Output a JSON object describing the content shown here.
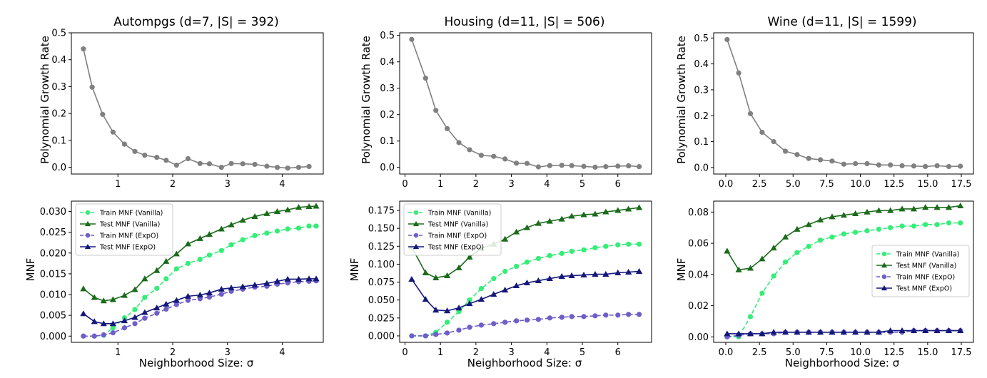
{
  "chart_data": [
    {
      "panel": "autompgs-growth",
      "type": "line",
      "title": "Autompgs (d=7, |S| = 392)",
      "xlabel": "",
      "ylabel": "Polynomial Growth Rate",
      "xlim": [
        0.15,
        4.75
      ],
      "ylim": [
        -0.025,
        0.5
      ],
      "xticks": [
        "1",
        "2",
        "3",
        "4"
      ],
      "xtick_values": [
        1,
        2,
        3,
        4
      ],
      "yticks": [
        "0.0",
        "0.1",
        "0.2",
        "0.3",
        "0.4",
        "0.5"
      ],
      "ytick_values": [
        0,
        0.1,
        0.2,
        0.3,
        0.4,
        0.5
      ],
      "grid": false,
      "legend": null,
      "series": [
        {
          "color": "#808080",
          "marker": "circle",
          "dash": "solid",
          "x": [
            0.37,
            0.53,
            0.72,
            0.91,
            1.12,
            1.31,
            1.49,
            1.71,
            1.88,
            2.07,
            2.28,
            2.5,
            2.67,
            2.89,
            3.07,
            3.28,
            3.5,
            3.72,
            3.91,
            4.1,
            4.3,
            4.49
          ],
          "y": [
            0.44,
            0.298,
            0.197,
            0.131,
            0.086,
            0.059,
            0.045,
            0.037,
            0.026,
            0.008,
            0.032,
            0.014,
            0.013,
            0.0,
            0.014,
            0.013,
            0.011,
            0.004,
            0.0,
            -0.003,
            0.0,
            0.003
          ]
        }
      ]
    },
    {
      "panel": "housing-growth",
      "type": "line",
      "title": "Housing (d=11, |S| = 506)",
      "xlabel": "",
      "ylabel": "Polynomial Growth Rate",
      "xlim": [
        -0.15,
        6.95
      ],
      "ylim": [
        -0.025,
        0.51
      ],
      "xticks": [
        "0",
        "1",
        "2",
        "3",
        "4",
        "5",
        "6"
      ],
      "xtick_values": [
        0,
        1,
        2,
        3,
        4,
        5,
        6
      ],
      "yticks": [
        "0.0",
        "0.1",
        "0.2",
        "0.3",
        "0.4",
        "0.5"
      ],
      "ytick_values": [
        0,
        0.1,
        0.2,
        0.3,
        0.4,
        0.5
      ],
      "grid": false,
      "legend": null,
      "series": [
        {
          "color": "#808080",
          "marker": "circle",
          "dash": "solid",
          "x": [
            0.19,
            0.58,
            0.87,
            1.19,
            1.52,
            1.82,
            2.15,
            2.5,
            2.82,
            3.14,
            3.44,
            3.76,
            4.08,
            4.42,
            4.7,
            5.04,
            5.36,
            5.66,
            6.0,
            6.3,
            6.6
          ],
          "y": [
            0.485,
            0.338,
            0.216,
            0.147,
            0.094,
            0.067,
            0.046,
            0.042,
            0.032,
            0.016,
            0.015,
            0.002,
            0.007,
            0.008,
            0.007,
            0.004,
            0.001,
            0.003,
            0.005,
            0.006,
            0.003
          ]
        }
      ]
    },
    {
      "panel": "wine-growth",
      "type": "line",
      "title": "Wine (d=11, |S| = 1599)",
      "xlabel": "",
      "ylabel": "Polynomial Growth Rate",
      "xlim": [
        -0.9,
        18.4
      ],
      "ylim": [
        -0.025,
        0.52
      ],
      "xticks": [
        "0.0",
        "2.5",
        "5.0",
        "7.5",
        "10.0",
        "12.5",
        "15.0",
        "17.5"
      ],
      "xtick_values": [
        0,
        2.5,
        5,
        7.5,
        10,
        12.5,
        15,
        17.5
      ],
      "yticks": [
        "0.0",
        "0.1",
        "0.2",
        "0.3",
        "0.4",
        "0.5"
      ],
      "ytick_values": [
        0,
        0.1,
        0.2,
        0.3,
        0.4,
        0.5
      ],
      "grid": false,
      "legend": null,
      "series": [
        {
          "color": "#808080",
          "marker": "circle",
          "dash": "solid",
          "x": [
            0.1,
            0.96,
            1.83,
            2.7,
            3.56,
            4.43,
            5.3,
            6.16,
            7.03,
            7.9,
            8.77,
            9.63,
            10.5,
            11.37,
            12.23,
            13.1,
            13.97,
            14.83,
            15.7,
            16.57,
            17.43
          ],
          "y": [
            0.494,
            0.365,
            0.208,
            0.136,
            0.1,
            0.063,
            0.05,
            0.035,
            0.03,
            0.025,
            0.013,
            0.015,
            0.015,
            0.01,
            0.01,
            0.007,
            0.006,
            0.004,
            0.007,
            0.004,
            0.005
          ]
        }
      ]
    },
    {
      "panel": "autompgs-mnf",
      "type": "line",
      "title": "",
      "xlabel": "Neighborhood Size: σ",
      "ylabel": "MNF",
      "xlim": [
        0.15,
        4.75
      ],
      "ylim": [
        -0.0015,
        0.0325
      ],
      "xticks": [
        "1",
        "2",
        "3",
        "4"
      ],
      "xtick_values": [
        1,
        2,
        3,
        4
      ],
      "yticks": [
        "0.000",
        "0.005",
        "0.010",
        "0.015",
        "0.020",
        "0.025",
        "0.030"
      ],
      "ytick_values": [
        0,
        0.005,
        0.01,
        0.015,
        0.02,
        0.025,
        0.03
      ],
      "grid": false,
      "legend": "upper-left",
      "x": [
        0.37,
        0.57,
        0.74,
        0.91,
        1.12,
        1.31,
        1.49,
        1.71,
        1.88,
        2.07,
        2.28,
        2.5,
        2.67,
        2.89,
        3.07,
        3.28,
        3.5,
        3.72,
        3.91,
        4.1,
        4.3,
        4.49,
        4.62
      ],
      "series": [
        {
          "name": "Train MNF (Vanilla)",
          "color": "#33ee77",
          "marker": "circle",
          "dash": "dashed",
          "y": [
            0.0,
            0.0,
            0.0002,
            0.002,
            0.0044,
            0.0064,
            0.0093,
            0.0115,
            0.0138,
            0.0162,
            0.0175,
            0.0185,
            0.0195,
            0.0206,
            0.022,
            0.0232,
            0.0242,
            0.0248,
            0.0253,
            0.0258,
            0.026,
            0.0265,
            0.0265
          ]
        },
        {
          "name": "Test MNF (Vanilla)",
          "color": "#1a6b1a",
          "marker": "triangle",
          "dash": "solid",
          "y": [
            0.0114,
            0.0093,
            0.0085,
            0.0088,
            0.0098,
            0.0112,
            0.0138,
            0.0158,
            0.018,
            0.0198,
            0.0222,
            0.0235,
            0.0245,
            0.0258,
            0.0268,
            0.0279,
            0.0288,
            0.0295,
            0.03,
            0.0304,
            0.031,
            0.0312,
            0.0313
          ]
        },
        {
          "name": "Train MNF (ExpO)",
          "color": "#6e5ec9",
          "marker": "circle",
          "dash": "dashed",
          "y": [
            0.0,
            0.0,
            0.0003,
            0.0008,
            0.002,
            0.003,
            0.0043,
            0.0055,
            0.0065,
            0.0076,
            0.0086,
            0.009,
            0.0094,
            0.0101,
            0.0108,
            0.0113,
            0.0118,
            0.012,
            0.0125,
            0.0128,
            0.0131,
            0.0132,
            0.0133
          ]
        },
        {
          "name": "Test MNF (ExpO)",
          "color": "#14187a",
          "marker": "triangle",
          "dash": "solid",
          "y": [
            0.0054,
            0.0035,
            0.003,
            0.003,
            0.0037,
            0.0045,
            0.0057,
            0.0068,
            0.0077,
            0.0086,
            0.0096,
            0.0099,
            0.0104,
            0.0113,
            0.0116,
            0.0119,
            0.0123,
            0.0127,
            0.0132,
            0.0137,
            0.0137,
            0.0138,
            0.0138
          ]
        }
      ]
    },
    {
      "panel": "housing-mnf",
      "type": "line",
      "title": "",
      "xlabel": "Neighborhood Size: σ",
      "ylabel": "MNF",
      "xlim": [
        -0.15,
        6.95
      ],
      "ylim": [
        -0.009,
        0.188
      ],
      "xticks": [
        "0",
        "1",
        "2",
        "3",
        "4",
        "5",
        "6"
      ],
      "xtick_values": [
        0,
        1,
        2,
        3,
        4,
        5,
        6
      ],
      "yticks": [
        "0.000",
        "0.025",
        "0.050",
        "0.075",
        "0.100",
        "0.125",
        "0.150",
        "0.175"
      ],
      "ytick_values": [
        0,
        0.025,
        0.05,
        0.075,
        0.1,
        0.125,
        0.15,
        0.175
      ],
      "grid": false,
      "legend": "upper-left",
      "x": [
        0.19,
        0.58,
        0.87,
        1.19,
        1.52,
        1.82,
        2.15,
        2.5,
        2.82,
        3.14,
        3.44,
        3.76,
        4.08,
        4.42,
        4.7,
        5.04,
        5.36,
        5.66,
        6.0,
        6.3,
        6.6
      ],
      "series": [
        {
          "name": "Train MNF (Vanilla)",
          "color": "#33ee77",
          "marker": "circle",
          "dash": "dashed",
          "y": [
            0.0,
            0.0,
            0.005,
            0.019,
            0.034,
            0.05,
            0.066,
            0.08,
            0.09,
            0.097,
            0.103,
            0.108,
            0.112,
            0.115,
            0.118,
            0.12,
            0.123,
            0.125,
            0.127,
            0.128,
            0.128
          ]
        },
        {
          "name": "Test MNF (Vanilla)",
          "color": "#1a6b1a",
          "marker": "triangle",
          "dash": "solid",
          "y": [
            0.124,
            0.088,
            0.081,
            0.084,
            0.095,
            0.11,
            0.122,
            0.128,
            0.135,
            0.145,
            0.151,
            0.157,
            0.16,
            0.163,
            0.167,
            0.169,
            0.17,
            0.173,
            0.175,
            0.177,
            0.179
          ]
        },
        {
          "name": "Train MNF (ExpO)",
          "color": "#6e5ec9",
          "marker": "circle",
          "dash": "dashed",
          "y": [
            0.0,
            0.0,
            0.002,
            0.004,
            0.008,
            0.012,
            0.015,
            0.017,
            0.019,
            0.021,
            0.022,
            0.023,
            0.025,
            0.026,
            0.027,
            0.027,
            0.028,
            0.029,
            0.029,
            0.03,
            0.03
          ]
        },
        {
          "name": "Test MNF (ExpO)",
          "color": "#14187a",
          "marker": "triangle",
          "dash": "solid",
          "y": [
            0.079,
            0.051,
            0.036,
            0.035,
            0.039,
            0.045,
            0.051,
            0.058,
            0.064,
            0.07,
            0.074,
            0.077,
            0.08,
            0.083,
            0.084,
            0.085,
            0.086,
            0.086,
            0.088,
            0.089,
            0.09
          ]
        }
      ]
    },
    {
      "panel": "wine-mnf",
      "type": "line",
      "title": "",
      "xlabel": "Neighborhood Size: σ",
      "ylabel": "MNF",
      "xlim": [
        -0.9,
        18.4
      ],
      "ylim": [
        -0.0035,
        0.087
      ],
      "xticks": [
        "0.0",
        "2.5",
        "5.0",
        "7.5",
        "10.0",
        "12.5",
        "15.0",
        "17.5"
      ],
      "xtick_values": [
        0,
        2.5,
        5,
        7.5,
        10,
        12.5,
        15,
        17.5
      ],
      "yticks": [
        "0.00",
        "0.02",
        "0.04",
        "0.06",
        "0.08"
      ],
      "ytick_values": [
        0,
        0.02,
        0.04,
        0.06,
        0.08
      ],
      "grid": false,
      "legend": "center-right",
      "x": [
        0.1,
        0.96,
        1.83,
        2.7,
        3.56,
        4.43,
        5.3,
        6.16,
        7.03,
        7.9,
        8.77,
        9.63,
        10.5,
        11.37,
        12.23,
        13.1,
        13.97,
        14.83,
        15.7,
        16.57,
        17.43
      ],
      "series": [
        {
          "name": "Train MNF (Vanilla)",
          "color": "#33ee77",
          "marker": "circle",
          "dash": "dashed",
          "y": [
            0.0,
            0.0,
            0.013,
            0.028,
            0.039,
            0.048,
            0.054,
            0.058,
            0.062,
            0.064,
            0.066,
            0.067,
            0.068,
            0.069,
            0.07,
            0.071,
            0.071,
            0.072,
            0.072,
            0.073,
            0.073
          ]
        },
        {
          "name": "Test MNF (Vanilla)",
          "color": "#1a6b1a",
          "marker": "triangle",
          "dash": "solid",
          "y": [
            0.055,
            0.043,
            0.044,
            0.05,
            0.057,
            0.064,
            0.069,
            0.072,
            0.075,
            0.077,
            0.078,
            0.079,
            0.08,
            0.081,
            0.081,
            0.082,
            0.082,
            0.083,
            0.083,
            0.083,
            0.084
          ]
        },
        {
          "name": "Train MNF (ExpO)",
          "color": "#6e5ec9",
          "marker": "circle",
          "dash": "dashed",
          "y": [
            0.0,
            0.001,
            0.002,
            0.002,
            0.002,
            0.003,
            0.003,
            0.003,
            0.003,
            0.003,
            0.003,
            0.003,
            0.003,
            0.003,
            0.003,
            0.003,
            0.004,
            0.004,
            0.004,
            0.004,
            0.004
          ]
        },
        {
          "name": "Test MNF (ExpO)",
          "color": "#14187a",
          "marker": "triangle",
          "dash": "solid",
          "y": [
            0.002,
            0.002,
            0.002,
            0.002,
            0.003,
            0.003,
            0.003,
            0.003,
            0.003,
            0.003,
            0.003,
            0.003,
            0.003,
            0.003,
            0.004,
            0.004,
            0.004,
            0.004,
            0.004,
            0.004,
            0.004
          ]
        }
      ]
    }
  ]
}
